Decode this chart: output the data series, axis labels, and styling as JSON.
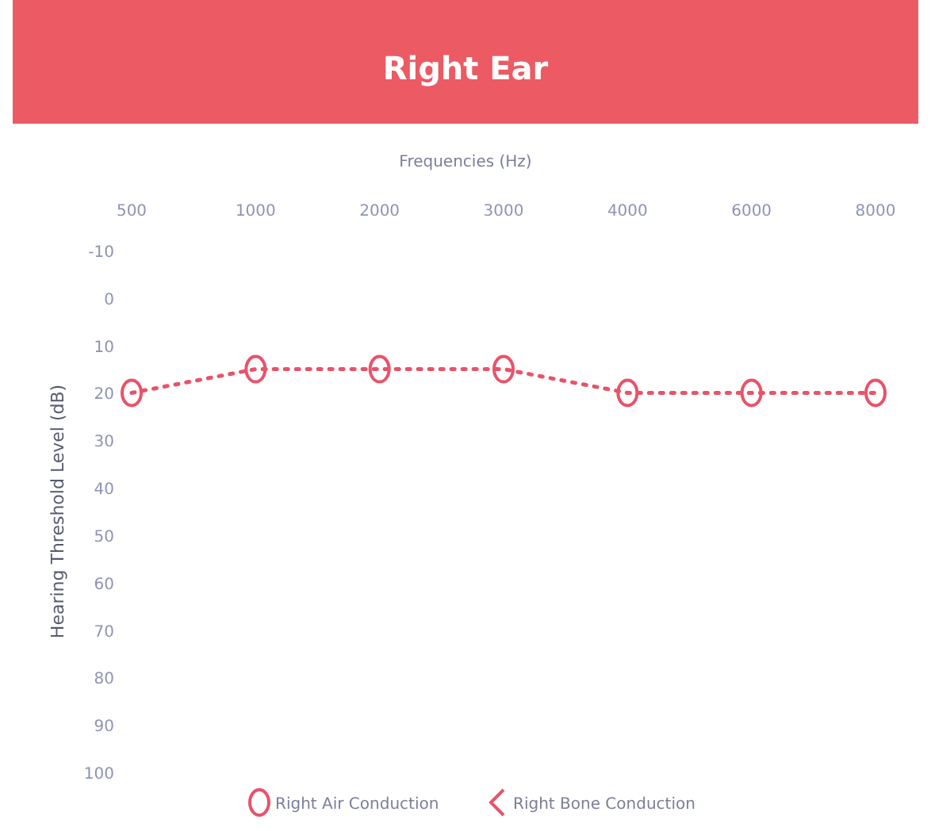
{
  "chart_data": {
    "type": "line",
    "title": "Right Ear",
    "xlabel": "Frequencies (Hz)",
    "ylabel": "Hearing Threshold Level (dB)",
    "categories": [
      "500",
      "1000",
      "2000",
      "3000",
      "4000",
      "6000",
      "8000"
    ],
    "series": [
      {
        "name": "Right Air Conduction",
        "color": "#e8536a",
        "values": [
          20,
          15,
          15,
          15,
          20,
          20,
          20
        ],
        "marker": "circle",
        "line_style": "dotted"
      },
      {
        "name": "Right Bone Conduction",
        "color": "#e8536a",
        "values": [
          null,
          null,
          null,
          null,
          null,
          null,
          null
        ]
      }
    ],
    "ylim": [
      100,
      -10
    ],
    "yticks": [
      -10,
      0,
      10,
      20,
      30,
      40,
      50,
      60,
      70,
      80,
      90,
      100
    ],
    "grid": false,
    "legend": "bottom"
  }
}
